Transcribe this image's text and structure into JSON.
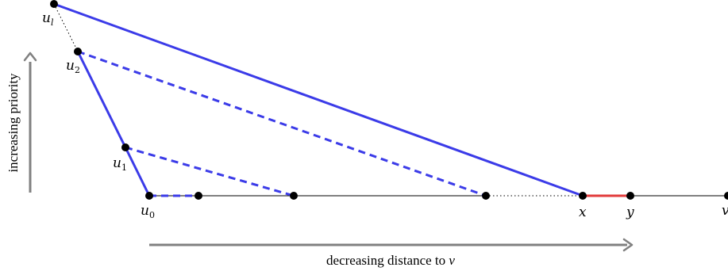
{
  "colors": {
    "blue": "#3b3be8",
    "red": "#e23b3b",
    "gray": "#808080",
    "black": "#000000"
  },
  "axes": {
    "vertical_label": "increasing priority",
    "horizontal_label_prefix": "decreasing distance to ",
    "horizontal_label_var": "v"
  },
  "points": {
    "u_l": {
      "base": "u",
      "sub": "l"
    },
    "u_2": {
      "base": "u",
      "sub": "2"
    },
    "u_1": {
      "base": "u",
      "sub": "1"
    },
    "u_0": {
      "base": "u",
      "sub": "0"
    },
    "x": {
      "base": "x"
    },
    "y": {
      "base": "y"
    },
    "v": {
      "base": "v"
    }
  }
}
